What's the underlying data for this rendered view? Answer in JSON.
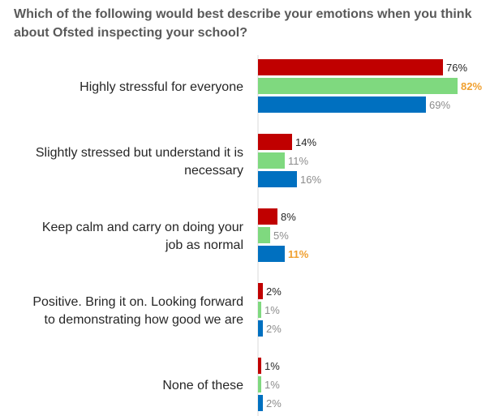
{
  "title": "Which of the following would best describe your emotions when you think about Ofsted inspecting your school?",
  "colors": {
    "series1": "#C00000",
    "series2": "#7FD97F",
    "series3": "#0070C0",
    "label_dark": "#262626",
    "label_gray": "#8C8C8C",
    "label_highlight": "#F0A030"
  },
  "chart_data": {
    "type": "bar",
    "orientation": "horizontal",
    "categories": [
      [
        "Highly stressful for everyone"
      ],
      [
        "Slightly stressed but understand it is",
        "necessary"
      ],
      [
        "Keep calm and carry on doing your",
        "job as normal"
      ],
      [
        "Positive. Bring it on. Looking forward",
        "to demonstrating how good we are"
      ],
      [
        "None of these"
      ]
    ],
    "series": [
      {
        "values": [
          76,
          14,
          8,
          2,
          1
        ],
        "color": "#C00000"
      },
      {
        "values": [
          82,
          11,
          5,
          1,
          1
        ],
        "color": "#7FD97F"
      },
      {
        "values": [
          69,
          16,
          11,
          2,
          2
        ],
        "color": "#0070C0"
      }
    ],
    "highlighted": [
      [
        1,
        0
      ],
      [
        2,
        2
      ]
    ],
    "value_suffix": "%",
    "xlim": [
      0,
      100
    ]
  }
}
